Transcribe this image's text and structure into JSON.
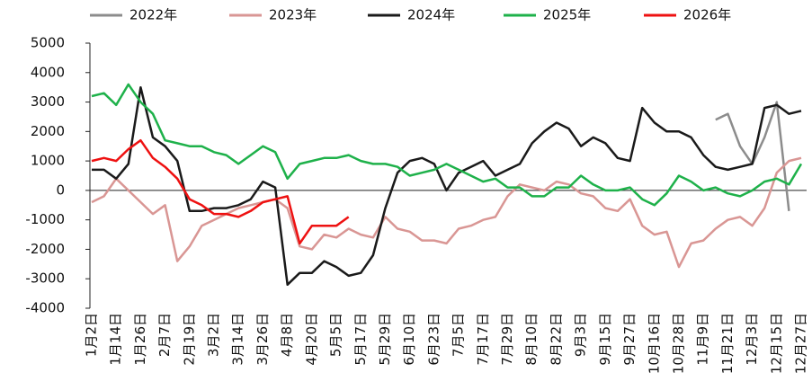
{
  "chart_data": {
    "type": "line",
    "categories": [
      "1月2日",
      null,
      "1月14日",
      null,
      "1月26日",
      null,
      "2月7日",
      null,
      "2月19日",
      null,
      "3月2日",
      null,
      "3月14日",
      null,
      "3月26日",
      null,
      "4月8日",
      null,
      "4月20日",
      null,
      "5月5日",
      null,
      "5月17日",
      null,
      "5月29日",
      null,
      "6月10日",
      null,
      "6月23日",
      null,
      "7月5日",
      null,
      "7月17日",
      null,
      "7月29日",
      null,
      "8月10日",
      null,
      "8月22日",
      null,
      "9月3日",
      null,
      "9月15日",
      null,
      "9月27日",
      null,
      "10月16日",
      null,
      "10月28日",
      null,
      "11月9日",
      null,
      "11月21日",
      null,
      "12月3日",
      null,
      "12月15日",
      null,
      "12月27日"
    ],
    "series": [
      {
        "name": "2022年",
        "color": "#8c8c8c",
        "values": [
          null,
          null,
          null,
          null,
          null,
          null,
          null,
          null,
          null,
          null,
          null,
          null,
          null,
          null,
          null,
          null,
          null,
          null,
          null,
          null,
          null,
          null,
          null,
          null,
          null,
          null,
          null,
          null,
          null,
          null,
          null,
          null,
          null,
          null,
          null,
          null,
          null,
          null,
          null,
          null,
          null,
          null,
          null,
          null,
          null,
          null,
          null,
          null,
          null,
          null,
          null,
          2400,
          2600,
          1500,
          900,
          1800,
          3000,
          -700,
          null
        ]
      },
      {
        "name": "2023年",
        "color": "#d99694",
        "values": [
          -400,
          -200,
          400,
          0,
          -400,
          -800,
          -500,
          -2400,
          -1900,
          -1200,
          -1000,
          -800,
          -600,
          -500,
          -400,
          -300,
          -600,
          -1900,
          -2000,
          -1500,
          -1600,
          -1300,
          -1500,
          -1600,
          -900,
          -1300,
          -1400,
          -1700,
          -1700,
          -1800,
          -1300,
          -1200,
          -1000,
          -900,
          -200,
          200,
          100,
          0,
          300,
          200,
          -100,
          -200,
          -600,
          -700,
          -300,
          -1200,
          -1500,
          -1400,
          -2600,
          -1800,
          -1700,
          -1300,
          -1000,
          -900,
          -1200,
          -600,
          600,
          1000,
          1100
        ]
      },
      {
        "name": "2024年",
        "color": "#1a1a1a",
        "values": [
          700,
          700,
          400,
          900,
          3500,
          1800,
          1500,
          1000,
          -700,
          -700,
          -600,
          -600,
          -500,
          -300,
          300,
          100,
          -3200,
          -2800,
          -2800,
          -2400,
          -2600,
          -2900,
          -2800,
          -2200,
          -600,
          600,
          1000,
          1100,
          900,
          0,
          600,
          800,
          1000,
          500,
          700,
          900,
          1600,
          2000,
          2300,
          2100,
          1500,
          1800,
          1600,
          1100,
          1000,
          2800,
          2300,
          2000,
          2000,
          1800,
          1200,
          800,
          700,
          800,
          900,
          2800,
          2900,
          2600,
          2700
        ]
      },
      {
        "name": "2025年",
        "color": "#1eb14a",
        "values": [
          3200,
          3300,
          2900,
          3600,
          3000,
          2600,
          1700,
          1600,
          1500,
          1500,
          1300,
          1200,
          900,
          1200,
          1500,
          1300,
          400,
          900,
          1000,
          1100,
          1100,
          1200,
          1000,
          900,
          900,
          800,
          500,
          600,
          700,
          900,
          700,
          500,
          300,
          400,
          100,
          100,
          -200,
          -200,
          100,
          100,
          500,
          200,
          0,
          0,
          100,
          -300,
          -500,
          -100,
          500,
          300,
          0,
          100,
          -100,
          -200,
          0,
          300,
          400,
          200,
          900
        ]
      },
      {
        "name": "2026年",
        "color": "#ee1111",
        "values": [
          1000,
          1100,
          1000,
          1400,
          1700,
          1100,
          800,
          400,
          -300,
          -500,
          -800,
          -800,
          -900,
          -700,
          -400,
          -300,
          -200,
          -1800,
          -1200,
          -1200,
          -1200,
          -900,
          null,
          null,
          null,
          null,
          null,
          null,
          null,
          null,
          null,
          null,
          null,
          null,
          null,
          null,
          null,
          null,
          null,
          null,
          null,
          null,
          null,
          null,
          null,
          null,
          null,
          null,
          null,
          null,
          null,
          null,
          null,
          null,
          null,
          null,
          null,
          null,
          null
        ]
      }
    ],
    "ylim": [
      -4000,
      5000
    ],
    "yticks": [
      5000,
      4000,
      3000,
      2000,
      1000,
      0,
      -1000,
      -2000,
      -3000,
      -4000
    ],
    "grid": false
  }
}
